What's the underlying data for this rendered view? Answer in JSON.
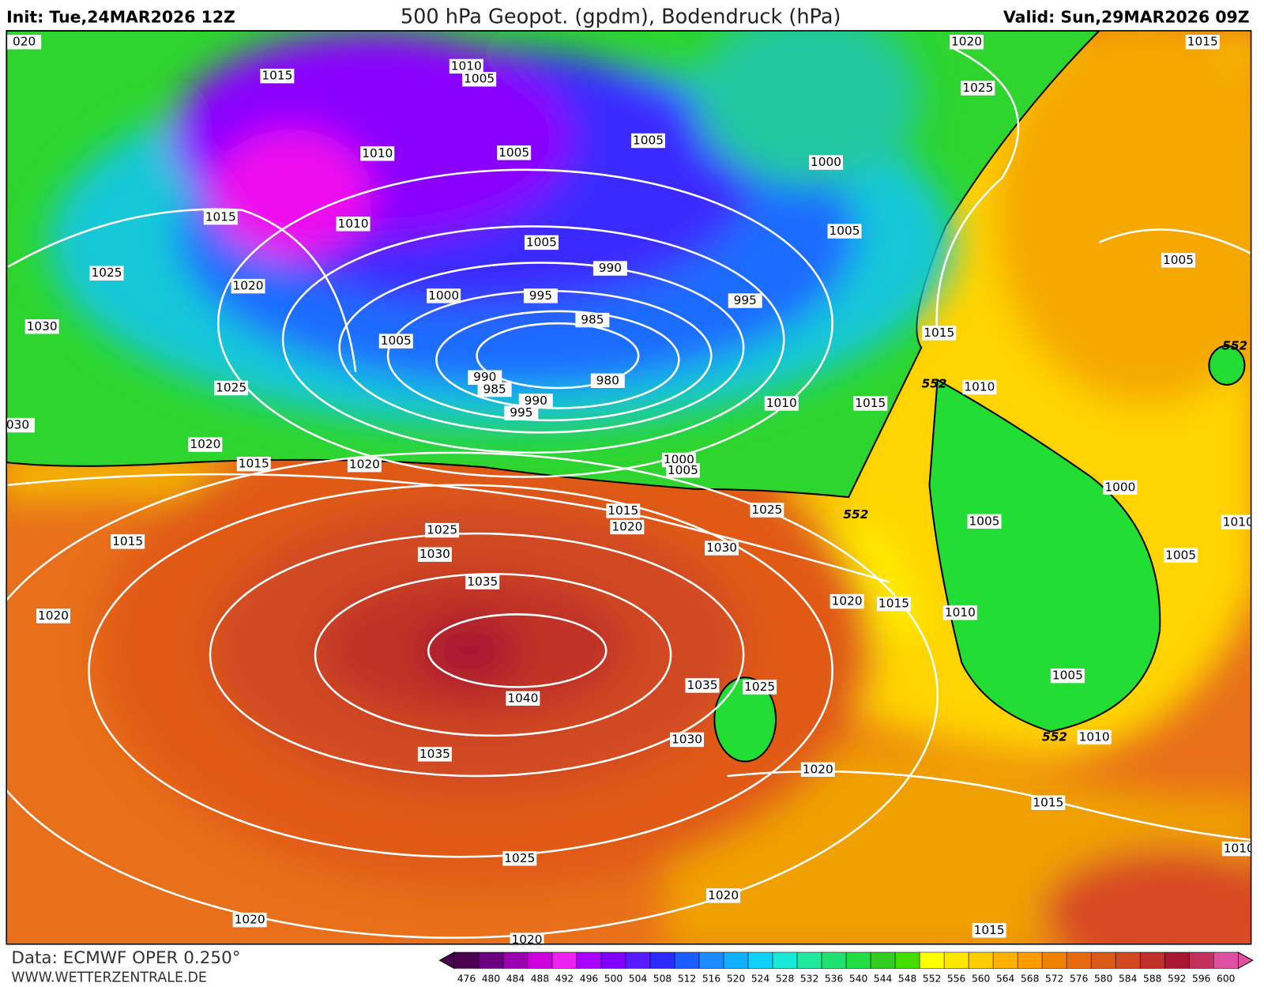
{
  "header": {
    "init": "Init: Tue,24MAR2026 12Z",
    "title": "500 hPa Geopot. (gpdm), Bodendruck (hPa)",
    "valid": "Valid: Sun,29MAR2026 09Z"
  },
  "isobar_labels": [
    "020",
    "1015",
    "1010",
    "1005",
    "1010",
    "1005",
    "1005",
    "1020",
    "1015",
    "1025",
    "1000",
    "1015",
    "1010",
    "1005",
    "1005",
    "990",
    "1025",
    "1020",
    "1000",
    "995",
    "995",
    "1005",
    "1030",
    "985",
    "1005",
    "1015",
    "552",
    "990",
    "985",
    "980",
    "990",
    "995",
    "1025",
    "1010",
    "1015",
    "552",
    "1010",
    "030",
    "1020",
    "1015",
    "1020",
    "1000",
    "1005",
    "1015",
    "1020",
    "1025",
    "552",
    "1000",
    "1015",
    "1025",
    "1030",
    "1030",
    "1005",
    "1010",
    "1005",
    "1035",
    "1020",
    "1015",
    "1010",
    "1020",
    "1040",
    "1035",
    "1025",
    "1005",
    "1030",
    "552",
    "1010",
    "1035",
    "1020",
    "1015",
    "1025",
    "1010",
    "1020",
    "1020",
    "1015",
    "1020"
  ],
  "colorbar": {
    "labels": [
      476,
      480,
      484,
      488,
      492,
      496,
      500,
      504,
      508,
      512,
      516,
      520,
      524,
      528,
      532,
      536,
      540,
      544,
      548,
      552,
      556,
      560,
      564,
      568,
      572,
      576,
      580,
      584,
      588,
      592,
      596,
      600
    ]
  },
  "footer": {
    "data": "Data: ECMWF OPER 0.250°",
    "url": "WWW.WETTERZENTRALE.DE"
  }
}
